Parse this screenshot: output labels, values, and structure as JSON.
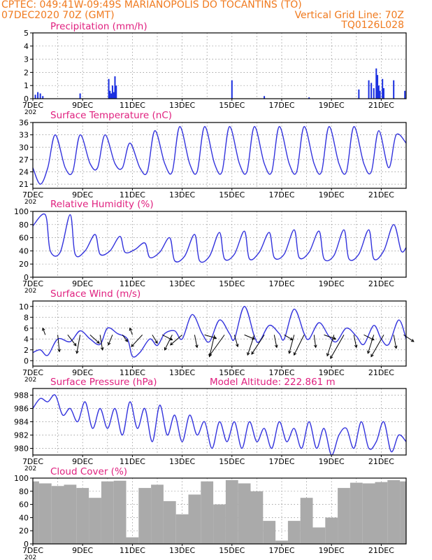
{
  "header": {
    "line1": "CPTEC:   049:41W-09:49S   MARIANOPOLIS DO TOCANTINS (TO)",
    "line2_left": "07DEC2020 70Z (GMT)",
    "line2_right": "Vertical Grid Line: 70Z",
    "line3_right": "TQ0126L028"
  },
  "colors": {
    "header": "#f07a1e",
    "title": "#e0207f",
    "line": "#3333dd",
    "bar": "#1a2fe0",
    "cloud": "#aaaaaa"
  },
  "x_axis": {
    "tick_labels": [
      "7DEC",
      "9DEC",
      "11DEC",
      "13DEC",
      "15DEC",
      "17DEC",
      "19DEC",
      "21DEC"
    ],
    "tick_days": [
      7,
      9,
      11,
      13,
      15,
      17,
      19,
      21
    ],
    "range": [
      7,
      22
    ],
    "year_fragment": "202"
  },
  "chart_data": [
    {
      "id": "precip",
      "type": "bar",
      "title": "Precipitation (mm/h)",
      "ylim": [
        0,
        5
      ],
      "yticks": [
        0,
        1,
        2,
        3,
        4,
        5
      ],
      "grid": true,
      "x": [
        7.1,
        7.2,
        7.3,
        7.4,
        8.9,
        10.05,
        10.1,
        10.15,
        10.2,
        10.25,
        10.3,
        10.35,
        15.0,
        16.3,
        18.1,
        20.1,
        20.5,
        20.6,
        20.7,
        20.8,
        20.85,
        20.9,
        20.95,
        21.05,
        21.1,
        21.5,
        21.95
      ],
      "values": [
        0.3,
        0.5,
        0.4,
        0.2,
        0.4,
        1.5,
        0.6,
        0.4,
        1.0,
        0.5,
        1.7,
        1.0,
        1.4,
        0.2,
        0.1,
        0.7,
        1.4,
        1.2,
        0.8,
        2.3,
        1.8,
        1.0,
        0.6,
        1.5,
        0.8,
        1.4,
        0.6
      ]
    },
    {
      "id": "temp",
      "type": "line",
      "title": "Surface Temperature (nC)",
      "ylim": [
        20,
        36
      ],
      "yticks": [
        21,
        24,
        27,
        30,
        33,
        36
      ],
      "grid": true,
      "x": [
        7.0,
        7.3,
        7.6,
        7.9,
        8.3,
        8.6,
        8.9,
        9.3,
        9.6,
        9.9,
        10.3,
        10.6,
        10.9,
        11.3,
        11.6,
        11.9,
        12.3,
        12.6,
        12.9,
        13.3,
        13.6,
        13.9,
        14.3,
        14.6,
        14.9,
        15.3,
        15.6,
        15.9,
        16.3,
        16.6,
        16.9,
        17.3,
        17.6,
        17.9,
        18.3,
        18.6,
        18.9,
        19.3,
        19.6,
        19.9,
        20.3,
        20.6,
        20.9,
        21.3,
        21.6,
        22.0
      ],
      "values": [
        25,
        21,
        25,
        33,
        25,
        24,
        33,
        26,
        25,
        33,
        26,
        25,
        31,
        25,
        24,
        34,
        26,
        24,
        35,
        26,
        24,
        35,
        26,
        24,
        35,
        26,
        24,
        35,
        26,
        24,
        35,
        26,
        24,
        35,
        26,
        24,
        35,
        26,
        24,
        35,
        26,
        24,
        34,
        25,
        33,
        31
      ]
    },
    {
      "id": "rh",
      "type": "line",
      "title": "Relative Humidity (%)",
      "ylim": [
        0,
        100
      ],
      "yticks": [
        0,
        20,
        40,
        60,
        80,
        100
      ],
      "grid": true,
      "x": [
        7.0,
        7.5,
        7.7,
        8.1,
        8.5,
        8.7,
        9.1,
        9.5,
        9.7,
        10.1,
        10.5,
        10.7,
        11.1,
        11.5,
        11.7,
        12.1,
        12.5,
        12.7,
        13.1,
        13.5,
        13.7,
        14.1,
        14.5,
        14.7,
        15.1,
        15.5,
        15.7,
        16.1,
        16.5,
        16.7,
        17.1,
        17.5,
        17.7,
        18.1,
        18.5,
        18.7,
        19.1,
        19.5,
        19.7,
        20.1,
        20.5,
        20.7,
        21.1,
        21.5,
        21.8,
        22.0
      ],
      "values": [
        78,
        95,
        40,
        38,
        95,
        35,
        40,
        65,
        35,
        40,
        62,
        38,
        42,
        52,
        30,
        38,
        60,
        25,
        32,
        65,
        25,
        32,
        68,
        28,
        35,
        70,
        28,
        38,
        68,
        30,
        35,
        72,
        30,
        38,
        70,
        28,
        33,
        72,
        28,
        35,
        72,
        28,
        40,
        80,
        40,
        45
      ]
    },
    {
      "id": "wind",
      "type": "line",
      "title": "Surface Wind (m/s)",
      "ylim": [
        -1,
        11
      ],
      "yticks": [
        0,
        2,
        4,
        6,
        8,
        10
      ],
      "grid": true,
      "x": [
        7.0,
        7.3,
        7.6,
        8.0,
        8.5,
        8.9,
        9.3,
        9.7,
        10.0,
        10.4,
        10.8,
        11.0,
        11.3,
        11.7,
        12.0,
        12.3,
        12.7,
        13.0,
        13.4,
        13.8,
        14.1,
        14.5,
        14.9,
        15.1,
        15.5,
        15.9,
        16.1,
        16.5,
        16.9,
        17.1,
        17.5,
        17.9,
        18.1,
        18.5,
        18.9,
        19.2,
        19.6,
        20.0,
        20.3,
        20.7,
        21.0,
        21.3,
        21.7,
        22.0
      ],
      "values": [
        1.5,
        2.0,
        1.0,
        4.0,
        3.5,
        5.5,
        4.0,
        3.0,
        6.0,
        5.0,
        4.0,
        0.8,
        1.5,
        4.0,
        2.8,
        5.0,
        5.5,
        4.0,
        8.5,
        5.0,
        3.5,
        7.5,
        5.0,
        4.0,
        10.0,
        4.5,
        3.5,
        6.5,
        5.0,
        4.0,
        9.5,
        5.0,
        4.0,
        7.0,
        4.5,
        3.5,
        6.0,
        4.5,
        3.0,
        6.5,
        4.0,
        3.0,
        7.5,
        4.0
      ],
      "arrow_x": [
        7.5,
        8.0,
        8.4,
        8.9,
        9.3,
        9.7,
        10.2,
        10.6,
        11.0,
        11.4,
        11.8,
        12.2,
        12.6,
        13.0,
        13.5,
        13.9,
        14.3,
        14.7,
        15.1,
        15.5,
        15.9,
        16.3,
        16.7,
        17.1,
        17.5,
        17.9,
        18.3,
        18.7,
        19.1,
        19.5,
        19.9,
        20.3,
        20.7,
        21.1,
        21.5,
        21.9
      ],
      "arrow_u": [
        -0.3,
        0.2,
        1.0,
        -0.4,
        1.1,
        0.3,
        -0.5,
        0.6,
        -0.3,
        -1.3,
        0.6,
        1.2,
        -0.9,
        -1.4,
        0.3,
        1.4,
        -0.6,
        -1.8,
        0.4,
        1.2,
        -0.8,
        -1.5,
        0.3,
        1.0,
        -0.6,
        -1.2,
        0.2,
        1.4,
        -0.8,
        -1.6,
        0.3,
        1.2,
        -0.7,
        -1.5,
        0.3,
        1.2
      ],
      "arrow_v": [
        0.8,
        -2.0,
        -1.3,
        -2.2,
        -1.0,
        -1.8,
        -1.2,
        -0.8,
        0.8,
        -1.4,
        -1.0,
        -0.6,
        -1.8,
        -1.2,
        -1.5,
        -0.4,
        -2.6,
        -2.5,
        -1.4,
        -0.5,
        -2.4,
        -2.3,
        -1.5,
        -0.6,
        -2.2,
        -2.4,
        -1.5,
        -0.5,
        -2.5,
        -2.8,
        -1.5,
        -0.6,
        -2.2,
        -2.6,
        -1.6,
        -0.8
      ]
    },
    {
      "id": "pres",
      "type": "line",
      "title": "Surface Pressure (hPa)",
      "annotation": "Model Altitude: 222.861 m",
      "ylim": [
        979,
        989
      ],
      "yticks": [
        980,
        982,
        984,
        986,
        988
      ],
      "grid": true,
      "x": [
        7.0,
        7.3,
        7.6,
        7.9,
        8.2,
        8.5,
        8.8,
        9.1,
        9.4,
        9.7,
        10.0,
        10.3,
        10.6,
        10.9,
        11.2,
        11.5,
        11.8,
        12.1,
        12.4,
        12.7,
        13.0,
        13.3,
        13.6,
        13.9,
        14.2,
        14.5,
        14.8,
        15.1,
        15.4,
        15.7,
        16.0,
        16.3,
        16.6,
        16.9,
        17.2,
        17.5,
        17.8,
        18.1,
        18.4,
        18.7,
        19.0,
        19.3,
        19.6,
        19.9,
        20.2,
        20.5,
        20.8,
        21.1,
        21.4,
        21.7,
        22.0
      ],
      "values": [
        986,
        987.5,
        987,
        988,
        985,
        986,
        984,
        987,
        983,
        986,
        983,
        986,
        982,
        987,
        983,
        986,
        981,
        986.5,
        982,
        985,
        981,
        985,
        982,
        984,
        980,
        984,
        981,
        984,
        980,
        984,
        981,
        983,
        980,
        984,
        981,
        983,
        980,
        984,
        980,
        983,
        979,
        982,
        983,
        980,
        984,
        980,
        981,
        984,
        979.5,
        982,
        981
      ]
    },
    {
      "id": "cloud",
      "type": "bar",
      "title": "Cloud Cover (%)",
      "ylim": [
        0,
        100
      ],
      "yticks": [
        0,
        20,
        40,
        60,
        80,
        100
      ],
      "grid": true,
      "x": [
        7.0,
        7.5,
        8.0,
        8.5,
        9.0,
        9.5,
        10.0,
        10.5,
        11.0,
        11.5,
        12.0,
        12.5,
        13.0,
        13.5,
        14.0,
        14.5,
        15.0,
        15.5,
        16.0,
        16.5,
        17.0,
        17.5,
        18.0,
        18.5,
        19.0,
        19.5,
        20.0,
        20.5,
        21.0,
        21.5,
        22.0
      ],
      "values": [
        95,
        92,
        88,
        90,
        85,
        70,
        95,
        96,
        10,
        85,
        90,
        65,
        45,
        75,
        95,
        60,
        97,
        92,
        80,
        35,
        5,
        35,
        70,
        25,
        40,
        85,
        93,
        92,
        94,
        97,
        95
      ]
    }
  ]
}
